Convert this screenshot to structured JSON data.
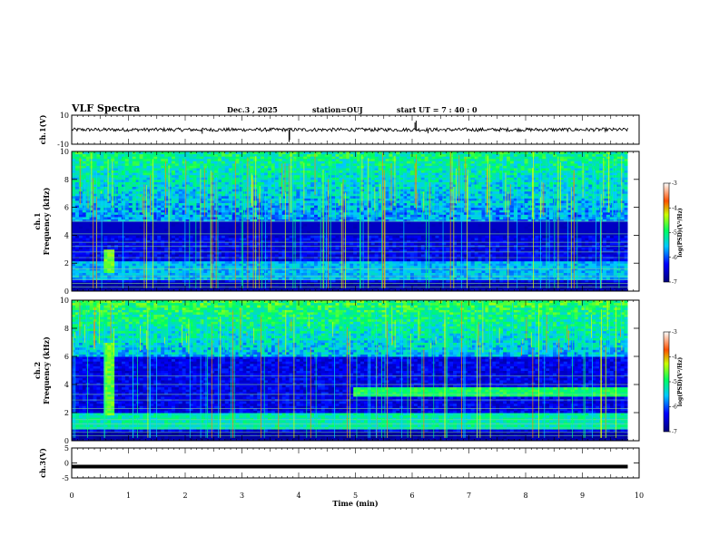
{
  "header": {
    "title": "VLF Spectra",
    "date": "Dec.3  , 2025",
    "station": "station=OUJ",
    "start": "start  UT =   7 : 40 : 0"
  },
  "colors": {
    "bg": "#ffffff",
    "axis": "#000000"
  },
  "chart_data": [
    {
      "type": "line",
      "name": "ch1-waveform",
      "ylabel": "ch.1(V)",
      "ylim": [
        -10,
        10
      ],
      "yticks": [
        "10",
        "-10"
      ],
      "xlim": [
        0,
        10
      ],
      "baseline": 0,
      "noise_amplitude": 1.2,
      "spikes": [
        {
          "t": 2.3,
          "v": -2.8
        },
        {
          "t": 3.83,
          "v": -8.5
        },
        {
          "t": 3.84,
          "v": -7.2
        },
        {
          "t": 6.05,
          "v": 5.0
        },
        {
          "t": 6.07,
          "v": 6.2
        },
        {
          "t": 6.28,
          "v": -2.5
        }
      ]
    },
    {
      "type": "heatmap",
      "name": "ch1-spectrogram",
      "ylabel_top": "ch.1",
      "ylabel": "Frequency (kHz)",
      "ylim": [
        0,
        10
      ],
      "yticks": [
        "0",
        "2",
        "4",
        "6",
        "8",
        "10"
      ],
      "xlim": [
        0,
        10
      ],
      "data_end_min": 9.8,
      "colorbar": {
        "label": "log(PSD)(V²/Hz)",
        "range": [
          -7,
          -3
        ],
        "ticks": [
          "-3",
          "-4",
          "-5",
          "-6",
          "-7"
        ]
      },
      "features": [
        {
          "kind": "hiss_band",
          "f_lo": 0.8,
          "f_hi": 2.2,
          "level": -5.6
        },
        {
          "kind": "emission",
          "t": 0.67,
          "f_lo": 1.4,
          "f_hi": 3.0,
          "level": -4.6
        },
        {
          "kind": "upper_band",
          "f_lo": 5.0,
          "f_hi": 10,
          "level": -5.0
        },
        {
          "kind": "vertical_sferics",
          "density": "high"
        }
      ]
    },
    {
      "type": "heatmap",
      "name": "ch2-spectrogram",
      "ylabel_top": "ch.2",
      "ylabel": "Frequency (kHz)",
      "ylim": [
        0,
        10
      ],
      "yticks": [
        "0",
        "2",
        "4",
        "6",
        "8",
        "10"
      ],
      "xlim": [
        0,
        10
      ],
      "data_end_min": 9.8,
      "colorbar": {
        "label": "log(PSD)(V²/Hz)",
        "range": [
          -7,
          -3
        ],
        "ticks": [
          "-3",
          "-4",
          "-5",
          "-6",
          "-7"
        ]
      },
      "features": [
        {
          "kind": "hiss_band",
          "f_lo": 0.8,
          "f_hi": 2.0,
          "level": -5.2
        },
        {
          "kind": "emission",
          "t": 0.67,
          "f_lo": 1.8,
          "f_hi": 7.0,
          "level": -4.6
        },
        {
          "kind": "narrow_band",
          "t_start": 4.95,
          "f_lo": 3.2,
          "f_hi": 3.9,
          "level": -4.9
        },
        {
          "kind": "upper_band",
          "f_lo": 6.0,
          "f_hi": 10,
          "level": -4.8
        },
        {
          "kind": "vertical_sferics",
          "density": "high"
        }
      ]
    },
    {
      "type": "line",
      "name": "ch3-waveform",
      "ylabel": "ch.3(V)",
      "ylim": [
        -5,
        5
      ],
      "yticks": [
        "5",
        "0",
        "-5"
      ],
      "xlim": [
        0,
        10
      ],
      "baseline": -1.2,
      "xlabel": "Time (min)",
      "xticks": [
        "0",
        "1",
        "2",
        "3",
        "4",
        "5",
        "6",
        "7",
        "8",
        "9",
        "10"
      ]
    }
  ]
}
